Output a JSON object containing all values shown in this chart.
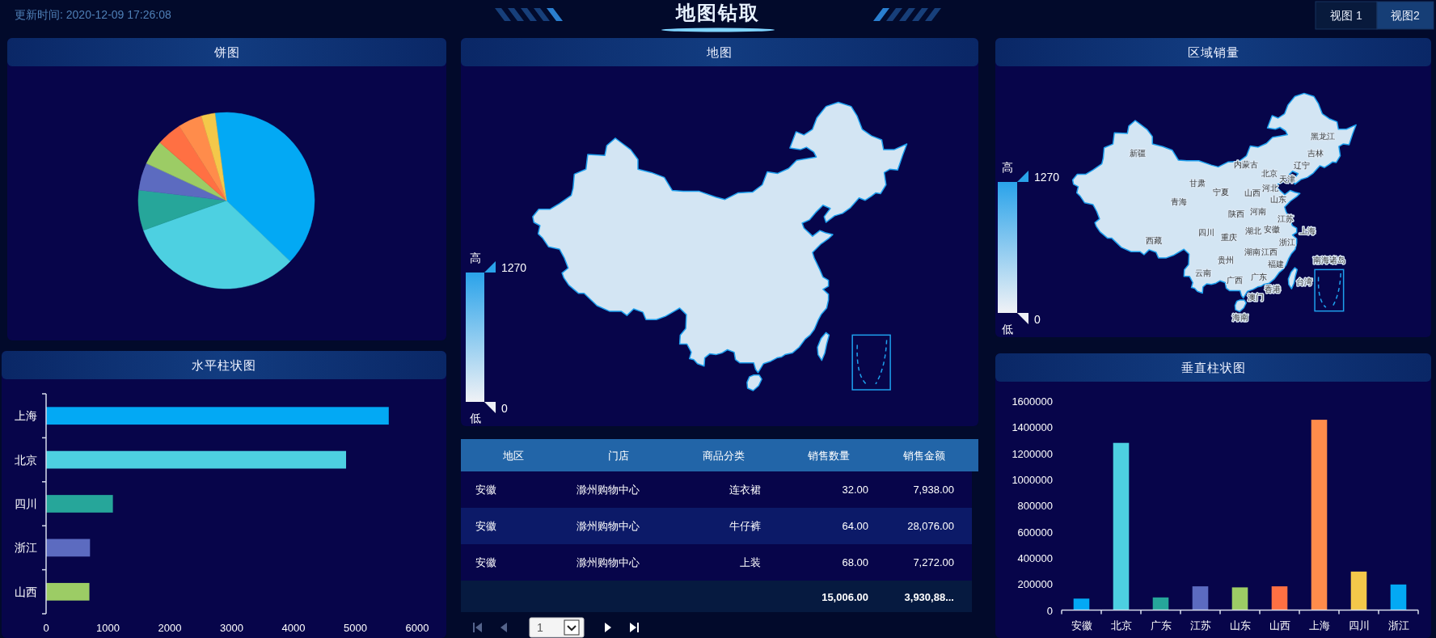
{
  "chart_data": [
    {
      "type": "other",
      "title": "地图钻取",
      "annotations": [
        "更新时间: 2020-12-09 17:26:08",
        "视图 1",
        "视图2"
      ]
    },
    {
      "type": "pie",
      "title": "饼图",
      "categories": [
        null,
        null,
        null,
        null,
        null,
        null,
        null,
        null
      ],
      "values": [
        39.2,
        32.4,
        7.4,
        5.0,
        4.5,
        4.6,
        4.4,
        2.5
      ],
      "colors": [
        "#03a9f4",
        "#4dd0e1",
        "#26a69a",
        "#5c6bc0",
        "#9ccc65",
        "#ff7043",
        "#ff8c4b",
        "#f4c84a"
      ]
    },
    {
      "type": "other",
      "title": "地图",
      "annotations": [
        "高",
        "1270",
        "0",
        "低"
      ]
    },
    {
      "type": "other",
      "title": "区域销量",
      "annotations": [
        "高",
        "1270",
        "0",
        "低"
      ],
      "categories": [
        "新疆",
        "西藏",
        "青海",
        "甘肃",
        "宁夏",
        "内蒙古",
        "北京",
        "天津",
        "河北",
        "山西",
        "山东",
        "陕西",
        "河南",
        "江苏",
        "安徽",
        "上海",
        "湖北",
        "浙江",
        "四川",
        "重庆",
        "湖南",
        "江西",
        "贵州",
        "云南",
        "福建",
        "台湾",
        "南海诸岛",
        "广东",
        "广西",
        "香港",
        "澳门",
        "海南",
        "辽宁",
        "吉林",
        "黑龙江"
      ]
    },
    {
      "type": "bar",
      "title": "水平柱状图",
      "orientation": "horizontal",
      "categories": [
        "上海",
        "北京",
        "四川",
        "浙江",
        "山西"
      ],
      "values": [
        5540,
        4850,
        1080,
        710,
        700
      ],
      "colors": [
        "#03a9f4",
        "#4dd0e1",
        "#26a69a",
        "#5c6bc0",
        "#9ccc65"
      ],
      "xlim": [
        0,
        6000
      ],
      "xticks": [
        0,
        1000,
        2000,
        3000,
        4000,
        5000,
        6000
      ]
    },
    {
      "type": "other",
      "categories": [
        "地区",
        "门店",
        "商品分类",
        "销售数量",
        "销售金额"
      ],
      "cell_labels": [
        [
          "安徽",
          "滁州购物中心",
          "连衣裙",
          "32.00",
          "7,938.00"
        ],
        [
          "安徽",
          "滁州购物中心",
          "牛仔裤",
          "64.00",
          "28,076.00"
        ],
        [
          "安徽",
          "滁州购物中心",
          "上装",
          "68.00",
          "7,272.00"
        ]
      ],
      "totals": [
        null,
        null,
        null,
        "15,006.00",
        "3,930,88..."
      ],
      "annotations": [
        "1"
      ]
    },
    {
      "type": "bar",
      "title": "垂直柱状图",
      "categories": [
        "安徽",
        "北京",
        "广东",
        "江苏",
        "山东",
        "山西",
        "上海",
        "四川",
        "浙江"
      ],
      "values": [
        88000,
        1280000,
        97000,
        182000,
        174000,
        182000,
        1457000,
        295000,
        196000
      ],
      "colors": [
        "#03a9f4",
        "#4dd0e1",
        "#26a69a",
        "#5c6bc0",
        "#9ccc65",
        "#ff7043",
        "#ff8c4b",
        "#f4c84a",
        "#03a9f4"
      ],
      "ylim": [
        0,
        1600000
      ],
      "yticks": [
        0,
        200000,
        400000,
        600000,
        800000,
        1000000,
        1200000,
        1400000,
        1600000
      ]
    }
  ]
}
